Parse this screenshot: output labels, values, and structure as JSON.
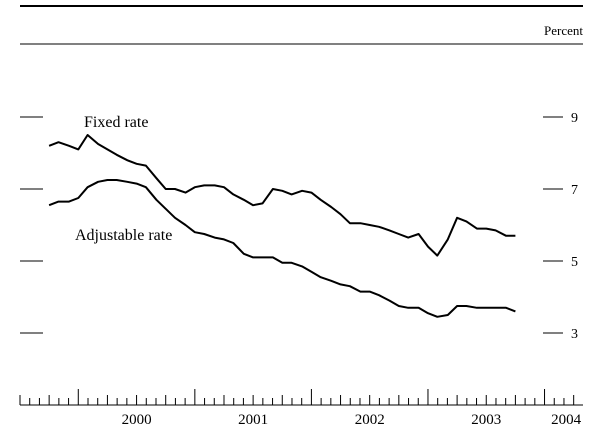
{
  "chart_data": {
    "type": "line",
    "unit_label": "Percent",
    "ylim": [
      1.6,
      10.6
    ],
    "y_ticks": [
      3,
      5,
      7,
      9
    ],
    "y_tick_labels": [
      "3",
      "5",
      "7",
      "9"
    ],
    "xlim": [
      1999.5,
      2004.33
    ],
    "x_tick_labels": [
      {
        "label": "2000",
        "year": 2000
      },
      {
        "label": "2001",
        "year": 2001
      },
      {
        "label": "2002",
        "year": 2002
      },
      {
        "label": "2003",
        "year": 2003
      },
      {
        "label": "2004",
        "year": 2004
      }
    ],
    "grid": false,
    "annotations": [
      {
        "text": "Fixed rate",
        "series": "fixed"
      },
      {
        "text": "Adjustable rate",
        "series": "adjustable"
      }
    ],
    "series": [
      {
        "key": "fixed",
        "name": "Fixed rate",
        "x": [
          1999.75,
          1999.83,
          1999.92,
          2000.0,
          2000.08,
          2000.17,
          2000.25,
          2000.33,
          2000.42,
          2000.5,
          2000.58,
          2000.67,
          2000.75,
          2000.83,
          2000.92,
          2001.0,
          2001.08,
          2001.17,
          2001.25,
          2001.33,
          2001.42,
          2001.5,
          2001.58,
          2001.67,
          2001.75,
          2001.83,
          2001.92,
          2002.0,
          2002.08,
          2002.17,
          2002.25,
          2002.33,
          2002.42,
          2002.5,
          2002.58,
          2002.67,
          2002.75,
          2002.83,
          2002.92,
          2003.0,
          2003.08,
          2003.17,
          2003.25,
          2003.33,
          2003.42,
          2003.5,
          2003.58,
          2003.67,
          2003.75
        ],
        "values": [
          8.2,
          8.3,
          8.2,
          8.1,
          8.5,
          8.25,
          8.1,
          7.95,
          7.8,
          7.7,
          7.65,
          7.3,
          7.0,
          7.0,
          6.9,
          7.05,
          7.1,
          7.1,
          7.05,
          6.85,
          6.7,
          6.55,
          6.6,
          7.0,
          6.95,
          6.85,
          6.95,
          6.9,
          6.7,
          6.5,
          6.3,
          6.05,
          6.05,
          6.0,
          5.95,
          5.85,
          5.75,
          5.65,
          5.75,
          5.4,
          5.15,
          5.6,
          6.2,
          6.1,
          5.9,
          5.9,
          5.85,
          5.7,
          5.7
        ]
      },
      {
        "key": "adjustable",
        "name": "Adjustable rate",
        "x": [
          1999.75,
          1999.83,
          1999.92,
          2000.0,
          2000.08,
          2000.17,
          2000.25,
          2000.33,
          2000.42,
          2000.5,
          2000.58,
          2000.67,
          2000.75,
          2000.83,
          2000.92,
          2001.0,
          2001.08,
          2001.17,
          2001.25,
          2001.33,
          2001.42,
          2001.5,
          2001.58,
          2001.67,
          2001.75,
          2001.83,
          2001.92,
          2002.0,
          2002.08,
          2002.17,
          2002.25,
          2002.33,
          2002.42,
          2002.5,
          2002.58,
          2002.67,
          2002.75,
          2002.83,
          2002.92,
          2003.0,
          2003.08,
          2003.17,
          2003.25,
          2003.33,
          2003.42,
          2003.5,
          2003.58,
          2003.67,
          2003.75
        ],
        "values": [
          6.55,
          6.65,
          6.65,
          6.75,
          7.05,
          7.2,
          7.25,
          7.25,
          7.2,
          7.15,
          7.05,
          6.7,
          6.45,
          6.2,
          6.0,
          5.8,
          5.75,
          5.65,
          5.6,
          5.5,
          5.2,
          5.1,
          5.1,
          5.1,
          4.95,
          4.95,
          4.85,
          4.7,
          4.55,
          4.45,
          4.35,
          4.3,
          4.15,
          4.15,
          4.05,
          3.9,
          3.75,
          3.7,
          3.7,
          3.55,
          3.45,
          3.5,
          3.75,
          3.75,
          3.7,
          3.7,
          3.7,
          3.7,
          3.6
        ]
      }
    ]
  }
}
